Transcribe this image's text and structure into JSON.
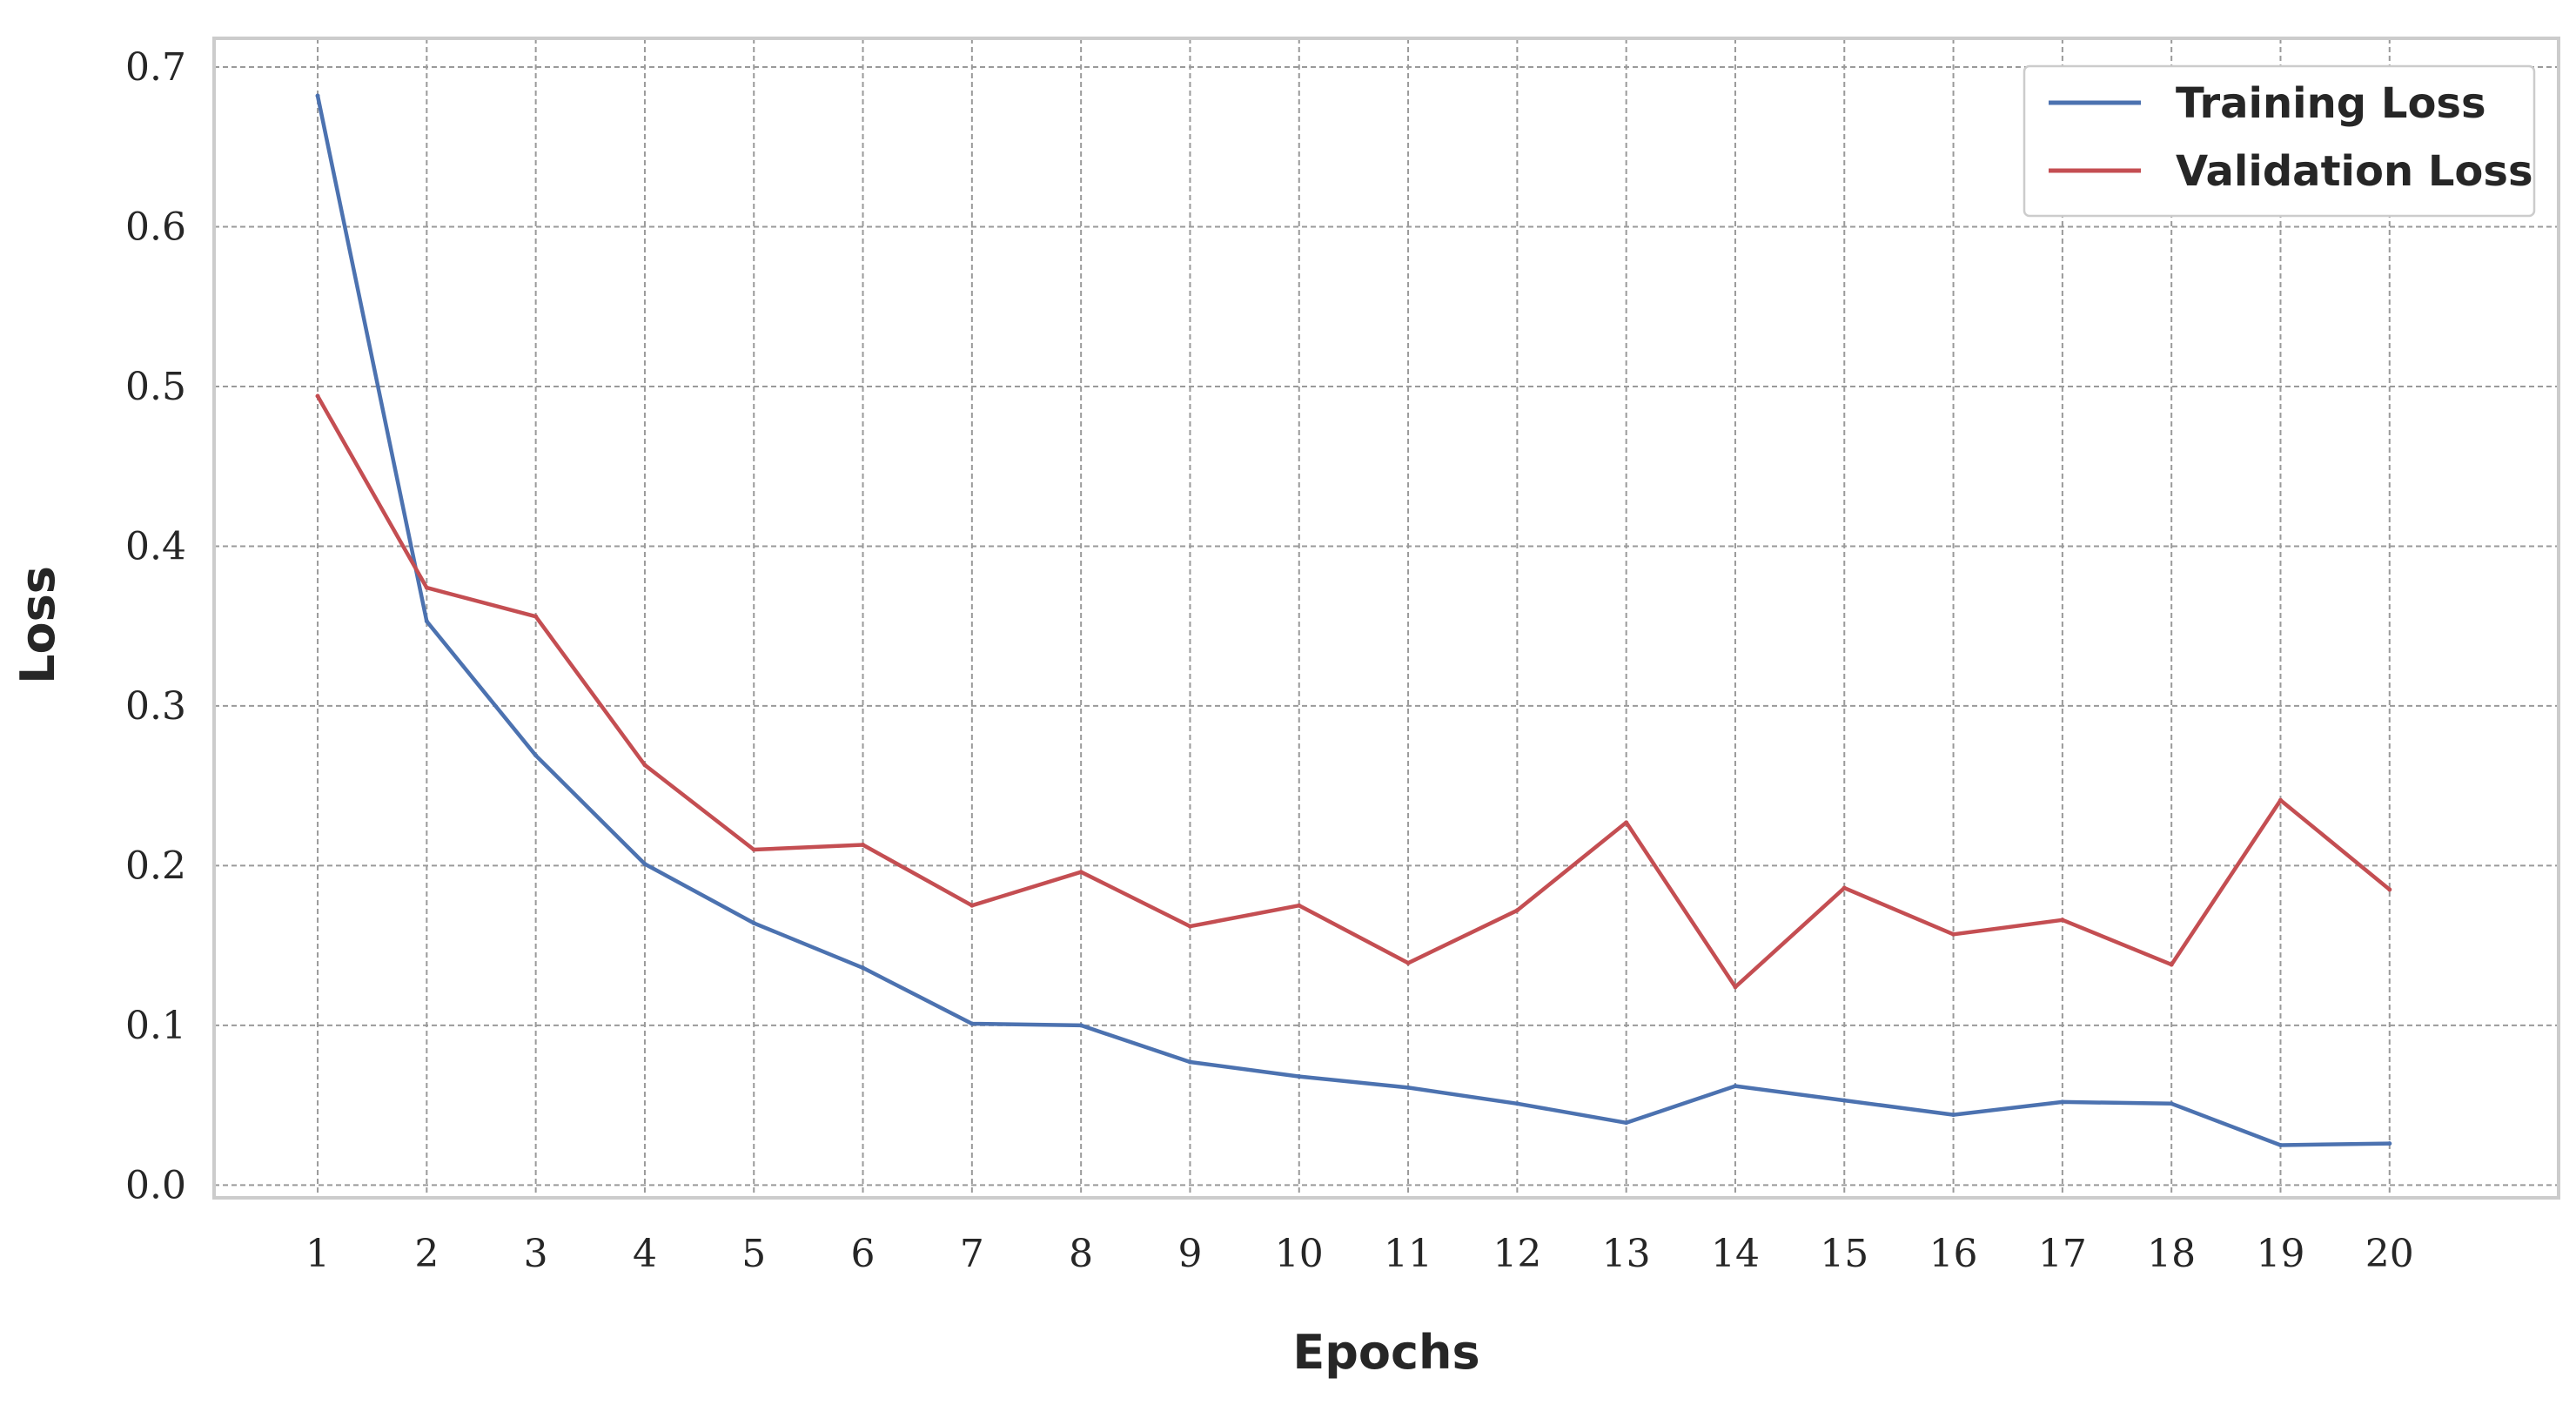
{
  "chart_data": {
    "type": "line",
    "xlabel": "Epochs",
    "ylabel": "Loss",
    "x": [
      1,
      2,
      3,
      4,
      5,
      6,
      7,
      8,
      9,
      10,
      11,
      12,
      13,
      14,
      15,
      16,
      17,
      18,
      19,
      20
    ],
    "x_tick_labels": [
      "1",
      "2",
      "3",
      "4",
      "5",
      "6",
      "7",
      "8",
      "9",
      "10",
      "11",
      "12",
      "13",
      "14",
      "15",
      "16",
      "17",
      "18",
      "19",
      "20"
    ],
    "xlim": [
      0.05,
      21.55
    ],
    "ylim": [
      -0.008,
      0.718
    ],
    "y_ticks": [
      0.0,
      0.1,
      0.2,
      0.3,
      0.4,
      0.5,
      0.6,
      0.7
    ],
    "y_tick_labels": [
      "0.0",
      "0.1",
      "0.2",
      "0.3",
      "0.4",
      "0.5",
      "0.6",
      "0.7"
    ],
    "grid": true,
    "legend_position": "top-right",
    "series": [
      {
        "name": "Training Loss",
        "color": "#4c72b0",
        "values": [
          0.682,
          0.353,
          0.269,
          0.201,
          0.164,
          0.136,
          0.101,
          0.1,
          0.077,
          0.068,
          0.061,
          0.051,
          0.039,
          0.062,
          0.053,
          0.044,
          0.052,
          0.051,
          0.025,
          0.026
        ]
      },
      {
        "name": "Validation Loss",
        "color": "#c44e52",
        "values": [
          0.494,
          0.374,
          0.356,
          0.263,
          0.21,
          0.213,
          0.175,
          0.196,
          0.162,
          0.175,
          0.139,
          0.172,
          0.227,
          0.124,
          0.186,
          0.157,
          0.166,
          0.138,
          0.241,
          0.185
        ]
      }
    ]
  }
}
